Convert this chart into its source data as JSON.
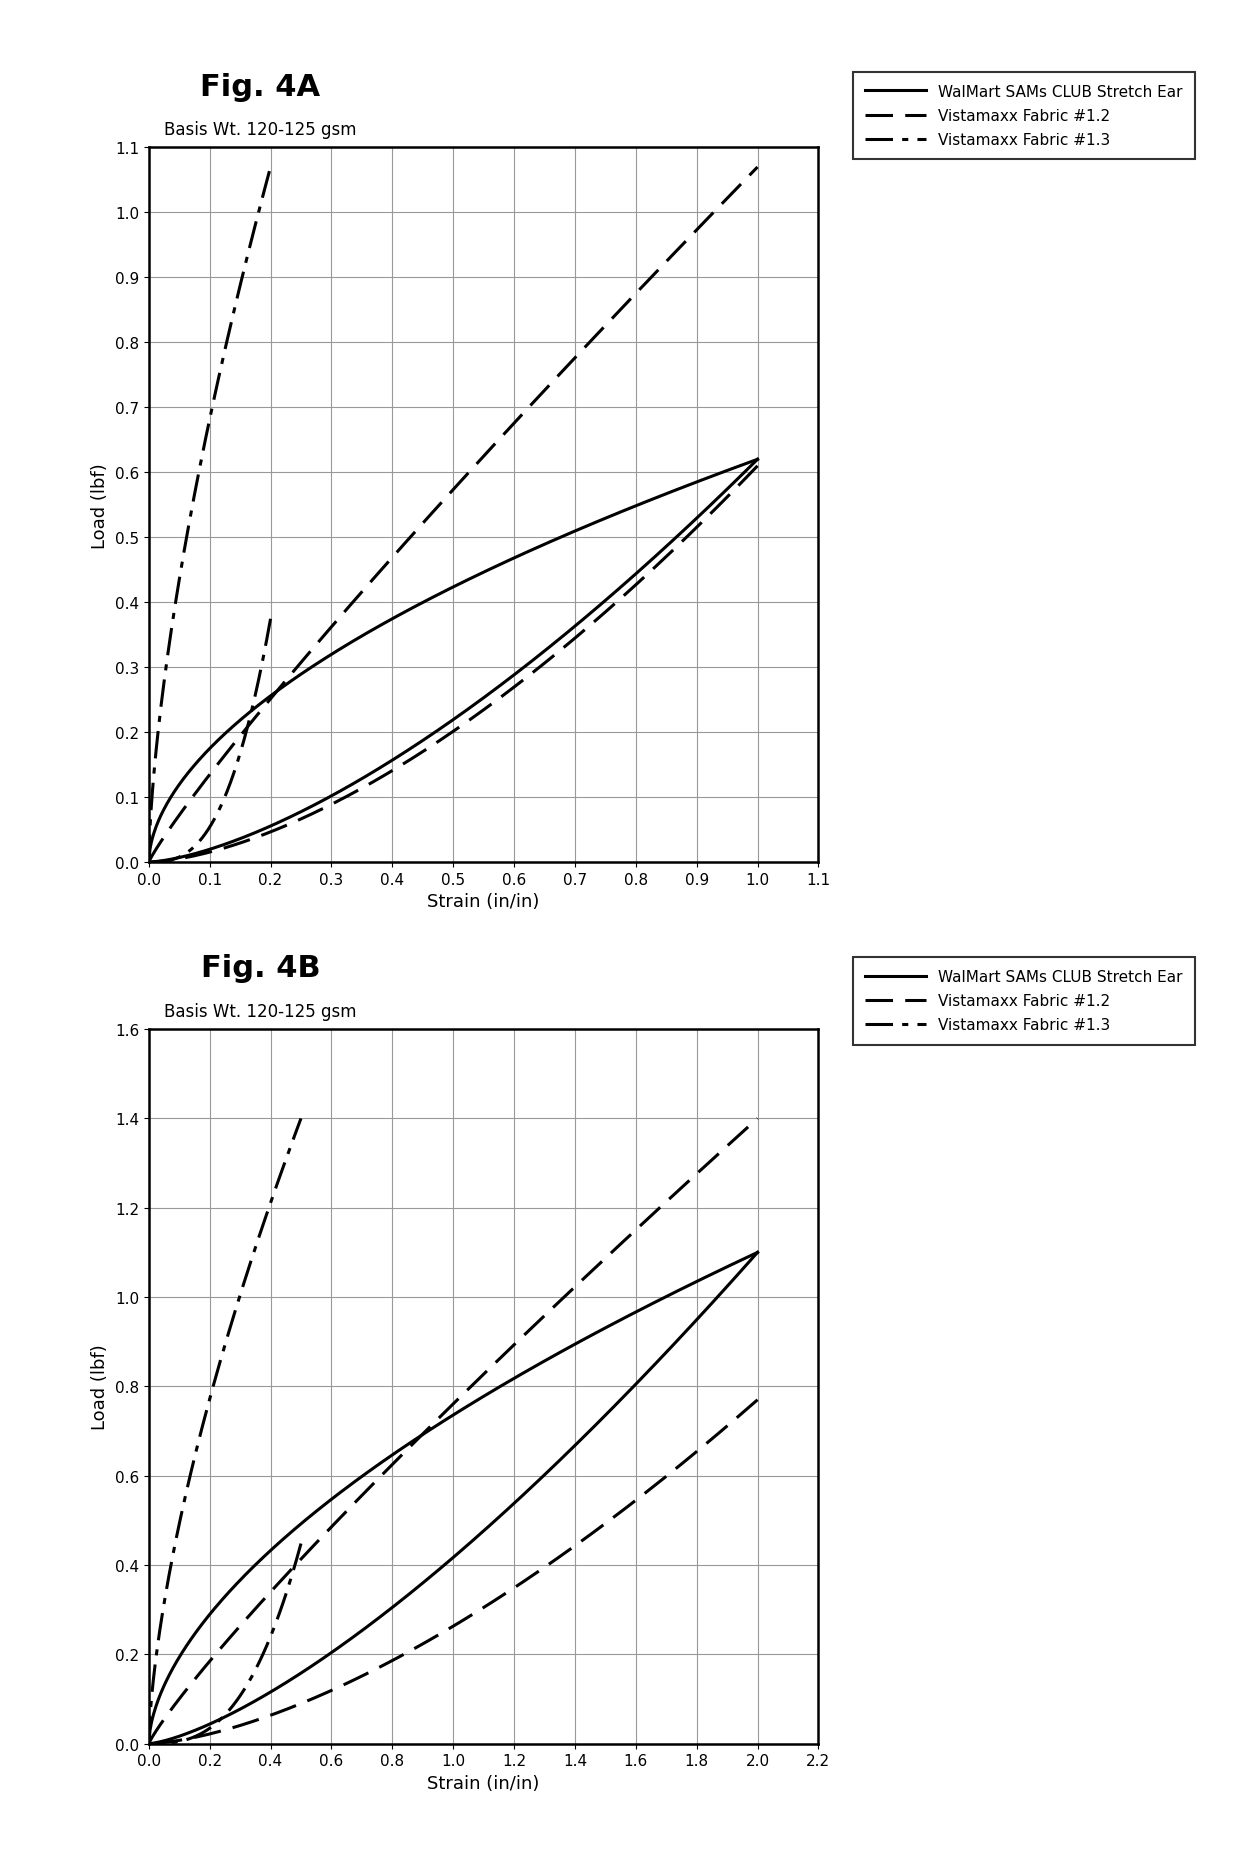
{
  "fig_title_A": "Fig. 4A",
  "fig_title_B": "Fig. 4B",
  "basis_wt_text": "Basis Wt. 120-125 gsm",
  "legend_labels": [
    "WalMart SAMs CLUB Stretch Ear",
    "Vistamaxx Fabric #1.2",
    "Vistamaxx Fabric #1.3"
  ],
  "xlabel": "Strain (in/in)",
  "ylabel": "Load (lbf)",
  "figA_xlim": [
    0.0,
    1.1
  ],
  "figA_ylim": [
    0.0,
    1.1
  ],
  "figA_xticks": [
    0.0,
    0.1,
    0.2,
    0.3,
    0.4,
    0.5,
    0.6,
    0.7,
    0.8,
    0.9,
    1.0,
    1.1
  ],
  "figA_yticks": [
    0.0,
    0.1,
    0.2,
    0.3,
    0.4,
    0.5,
    0.6,
    0.7,
    0.8,
    0.9,
    1.0,
    1.1
  ],
  "figB_xlim": [
    0.0,
    2.2
  ],
  "figB_ylim": [
    0.0,
    1.6
  ],
  "figB_xticks": [
    0.0,
    0.2,
    0.4,
    0.6,
    0.8,
    1.0,
    1.2,
    1.4,
    1.6,
    1.8,
    2.0,
    2.2
  ],
  "figB_yticks": [
    0.0,
    0.2,
    0.4,
    0.6,
    0.8,
    1.0,
    1.2,
    1.4,
    1.6
  ],
  "bg_color": "#ffffff",
  "line_color": "#000000"
}
